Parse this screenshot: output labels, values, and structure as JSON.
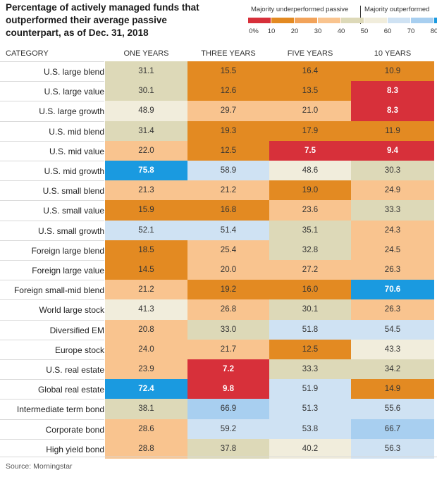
{
  "title": "Percentage of actively managed funds that outperformed their average passive counterpart, as of Dec. 31, 2018",
  "legend": {
    "left_label": "Majority underperformed passive",
    "right_label": "Majority outperformed",
    "ticks": [
      "0%",
      "10",
      "20",
      "30",
      "40",
      "50",
      "60",
      "70",
      "80"
    ],
    "swatches": [
      "#d7303a",
      "#e38a22",
      "#f2a35a",
      "#f9c48f",
      "#ddd9b8",
      "#f1eddc",
      "#cfe2f3",
      "#a8cff0",
      "#1a9ae0"
    ]
  },
  "source": "Source: Morningstar",
  "chart_data": {
    "type": "heatmap",
    "title": "Percentage of actively managed funds that outperformed their average passive counterpart, as of Dec. 31, 2018",
    "row_header": "CATEGORY",
    "columns": [
      "ONE YEARS",
      "THREE YEARS",
      "FIVE YEARS",
      "10 YEARS"
    ],
    "rows": [
      {
        "category": "U.S. large blend",
        "values": [
          "31.1",
          "15.5",
          "16.4",
          "10.9"
        ]
      },
      {
        "category": "U.S. large value",
        "values": [
          "30.1",
          "12.6",
          "13.5",
          "8.3"
        ]
      },
      {
        "category": "U.S. large growth",
        "values": [
          "48.9",
          "29.7",
          "21.0",
          "8.3"
        ]
      },
      {
        "category": "U.S. mid blend",
        "values": [
          "31.4",
          "19.3",
          "17.9",
          "11.9"
        ]
      },
      {
        "category": "U.S. mid value",
        "values": [
          "22.0",
          "12.5",
          "7.5",
          "9.4"
        ]
      },
      {
        "category": "U.S. mid growth",
        "values": [
          "75.8",
          "58.9",
          "48.6",
          "30.3"
        ]
      },
      {
        "category": "U.S. small blend",
        "values": [
          "21.3",
          "21.2",
          "19.0",
          "24.9"
        ]
      },
      {
        "category": "U.S. small value",
        "values": [
          "15.9",
          "16.8",
          "23.6",
          "33.3"
        ]
      },
      {
        "category": "U.S. small growth",
        "values": [
          "52.1",
          "51.4",
          "35.1",
          "24.3"
        ]
      },
      {
        "category": "Foreign large blend",
        "values": [
          "18.5",
          "25.4",
          "32.8",
          "24.5"
        ]
      },
      {
        "category": "Foreign large value",
        "values": [
          "14.5",
          "20.0",
          "27.2",
          "26.3"
        ]
      },
      {
        "category": "Foreign small-mid blend",
        "values": [
          "21.2",
          "19.2",
          "16.0",
          "70.6"
        ]
      },
      {
        "category": "World large stock",
        "values": [
          "41.3",
          "26.8",
          "30.1",
          "26.3"
        ]
      },
      {
        "category": "Diversified EM",
        "values": [
          "20.8",
          "33.0",
          "51.8",
          "54.5"
        ]
      },
      {
        "category": "Europe stock",
        "values": [
          "24.0",
          "21.7",
          "12.5",
          "43.3"
        ]
      },
      {
        "category": "U.S. real estate",
        "values": [
          "23.9",
          "7.2",
          "33.3",
          "34.2"
        ]
      },
      {
        "category": "Global real estate",
        "values": [
          "72.4",
          "9.8",
          "51.9",
          "14.9"
        ]
      },
      {
        "category": "Intermediate term bond",
        "values": [
          "38.1",
          "66.9",
          "51.3",
          "55.6"
        ]
      },
      {
        "category": "Corporate bond",
        "values": [
          "28.6",
          "59.2",
          "53.8",
          "66.7"
        ]
      },
      {
        "category": "High yield bond",
        "values": [
          "28.8",
          "37.8",
          "40.2",
          "56.3"
        ]
      }
    ]
  }
}
